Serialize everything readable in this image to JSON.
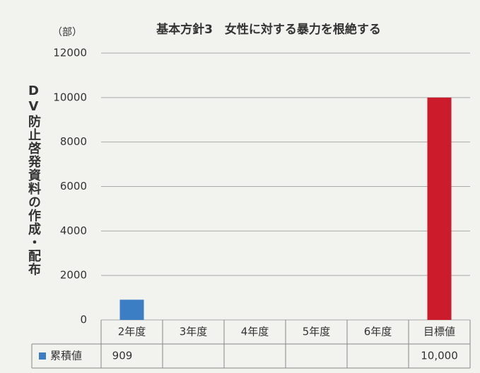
{
  "chart_data": {
    "type": "bar",
    "title": "基本方針3　女性に対する暴力を根絶する",
    "unit_label": "（部）",
    "y_axis_label": "DV防止啓発資料の作成・配布",
    "categories": [
      "2年度",
      "3年度",
      "4年度",
      "5年度",
      "6年度",
      "目標値"
    ],
    "series": [
      {
        "name": "累積値",
        "color": "#3b7ec4",
        "values": [
          909,
          null,
          null,
          null,
          null,
          10000
        ],
        "value_labels": [
          "909",
          null,
          null,
          null,
          null,
          "10,000"
        ],
        "point_colors": [
          "#3b7ec4",
          "#3b7ec4",
          "#3b7ec4",
          "#3b7ec4",
          "#3b7ec4",
          "#cc1c2b"
        ]
      }
    ],
    "ylim": [
      0,
      12000
    ],
    "yticks": [
      0,
      2000,
      4000,
      6000,
      8000,
      10000,
      12000
    ],
    "grid": true
  }
}
